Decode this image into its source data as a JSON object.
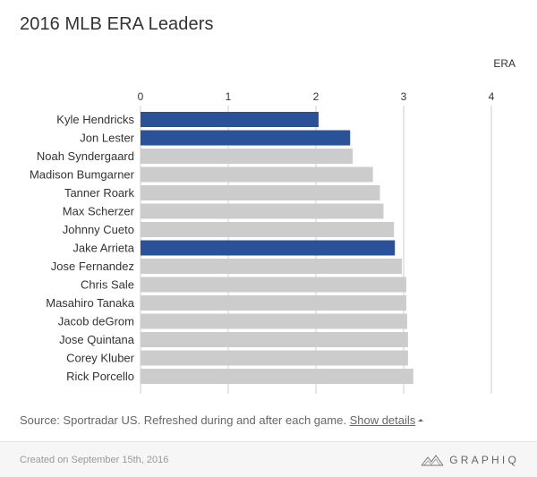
{
  "title": "2016 MLB ERA Leaders",
  "source_text": "Source: Sportradar US. Refreshed during and after each game.",
  "show_details_label": "Show details",
  "created_text": "Created on September 15th, 2016",
  "brand_name": "GRAPHIQ",
  "colors": {
    "highlight": "#2a5299",
    "default": "#cccccc",
    "grid": "#cccccc"
  },
  "chart_data": {
    "type": "bar",
    "orientation": "horizontal",
    "title": "2016 MLB ERA Leaders",
    "xlabel": "ERA",
    "xlim": [
      0,
      4
    ],
    "xticks": [
      0,
      1,
      2,
      3,
      4
    ],
    "grid": true,
    "categories": [
      "Kyle Hendricks",
      "Jon Lester",
      "Noah Syndergaard",
      "Madison Bumgarner",
      "Tanner Roark",
      "Max Scherzer",
      "Johnny Cueto",
      "Jake Arrieta",
      "Jose Fernandez",
      "Chris Sale",
      "Masahiro Tanaka",
      "Jacob deGrom",
      "Jose Quintana",
      "Corey Kluber",
      "Rick Porcello"
    ],
    "values": [
      2.03,
      2.39,
      2.42,
      2.65,
      2.73,
      2.77,
      2.89,
      2.9,
      2.98,
      3.03,
      3.03,
      3.04,
      3.05,
      3.05,
      3.11
    ],
    "highlighted": [
      "Kyle Hendricks",
      "Jon Lester",
      "Jake Arrieta"
    ]
  }
}
